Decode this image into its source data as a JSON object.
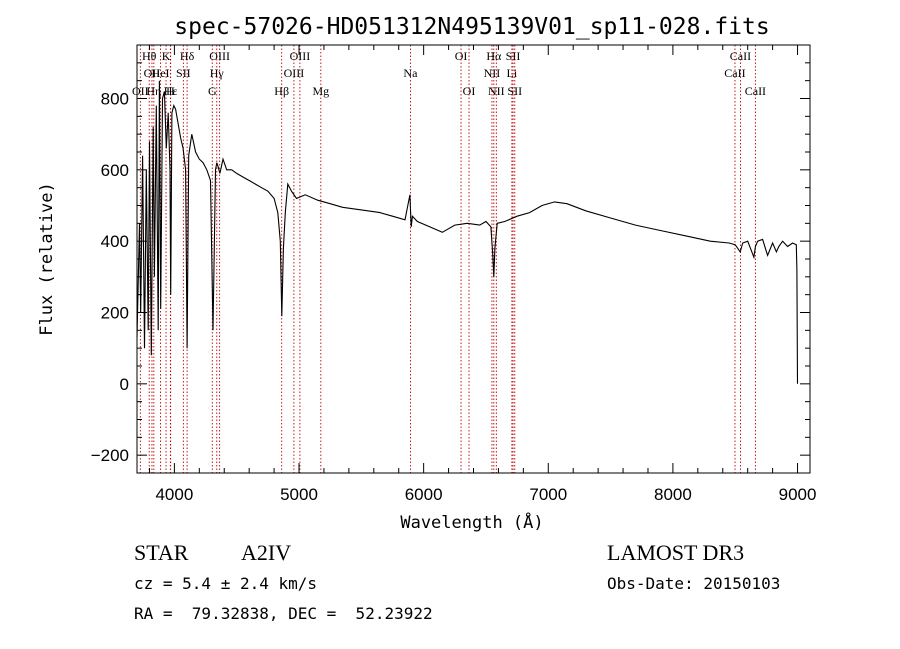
{
  "chart_data": {
    "type": "line",
    "title": "spec-57026-HD051312N495139V01_sp11-028.fits",
    "xlabel": "Wavelength (Å)",
    "ylabel": "Flux (relative)",
    "xlim": [
      3700,
      9100
    ],
    "ylim": [
      -250,
      950
    ],
    "xticks": [
      4000,
      5000,
      6000,
      7000,
      8000,
      9000
    ],
    "yticks": [
      -200,
      0,
      200,
      400,
      600,
      800
    ],
    "grid": false,
    "series": [
      {
        "x": [
          3700,
          3720,
          3730,
          3745,
          3760,
          3775,
          3790,
          3800,
          3815,
          3830,
          3840,
          3855,
          3870,
          3880,
          3890,
          3905,
          3920,
          3935,
          3950,
          3965,
          3970,
          3980,
          3995,
          4010,
          4030,
          4050,
          4070,
          4090,
          4102,
          4115,
          4140,
          4170,
          4200,
          4230,
          4260,
          4290,
          4310,
          4330,
          4340,
          4350,
          4365,
          4390,
          4420,
          4460,
          4500,
          4550,
          4600,
          4650,
          4700,
          4750,
          4800,
          4830,
          4850,
          4862,
          4875,
          4890,
          4910,
          4940,
          4980,
          5050,
          5150,
          5250,
          5350,
          5450,
          5550,
          5650,
          5750,
          5850,
          5890,
          5900,
          5910,
          5950,
          6050,
          6150,
          6250,
          6350,
          6450,
          6500,
          6540,
          6555,
          6563,
          6572,
          6590,
          6650,
          6750,
          6850,
          6950,
          7050,
          7150,
          7300,
          7500,
          7700,
          7900,
          8100,
          8300,
          8450,
          8500,
          8540,
          8560,
          8600,
          8650,
          8662,
          8680,
          8720,
          8760,
          8800,
          8830,
          8850,
          8880,
          8920,
          8960,
          8990,
          8995,
          9000
        ],
        "y": [
          130,
          450,
          200,
          640,
          100,
          600,
          150,
          680,
          80,
          720,
          300,
          780,
          150,
          850,
          210,
          800,
          820,
          660,
          760,
          600,
          250,
          760,
          780,
          770,
          730,
          690,
          660,
          600,
          100,
          640,
          700,
          650,
          630,
          620,
          600,
          570,
          150,
          600,
          620,
          610,
          590,
          630,
          600,
          600,
          590,
          580,
          570,
          560,
          550,
          540,
          520,
          480,
          400,
          190,
          380,
          480,
          560,
          540,
          520,
          530,
          515,
          505,
          495,
          490,
          485,
          480,
          470,
          460,
          530,
          440,
          470,
          455,
          440,
          425,
          445,
          450,
          445,
          455,
          440,
          360,
          300,
          380,
          450,
          455,
          470,
          480,
          500,
          510,
          505,
          485,
          465,
          445,
          430,
          415,
          400,
          395,
          390,
          370,
          395,
          400,
          355,
          385,
          400,
          405,
          360,
          395,
          370,
          385,
          400,
          385,
          395,
          390,
          320,
          0
        ]
      }
    ],
    "lines": [
      {
        "w": 3727,
        "label": "OII",
        "row": 2
      },
      {
        "w": 3798,
        "label": "Hθ",
        "row": 0
      },
      {
        "w": 3820,
        "label": "OII",
        "row": 1
      },
      {
        "w": 3835,
        "label": "Hη",
        "row": 2
      },
      {
        "w": 3889,
        "label": "HeI",
        "row": 1
      },
      {
        "w": 3933,
        "label": "K",
        "row": 0
      },
      {
        "w": 3970,
        "label": "Hε",
        "row": 2
      },
      {
        "w": 3968,
        "label": "H",
        "row": 2
      },
      {
        "w": 4072,
        "label": "SII",
        "row": 1
      },
      {
        "w": 4102,
        "label": "Hδ",
        "row": 0
      },
      {
        "w": 4304,
        "label": "G",
        "row": 2
      },
      {
        "w": 4340,
        "label": "Hγ",
        "row": 1
      },
      {
        "w": 4363,
        "label": "OIII",
        "row": 0
      },
      {
        "w": 4861,
        "label": "Hβ",
        "row": 2
      },
      {
        "w": 4959,
        "label": "OIII",
        "row": 1
      },
      {
        "w": 5007,
        "label": "OIII",
        "row": 0
      },
      {
        "w": 5175,
        "label": "Mg",
        "row": 2
      },
      {
        "w": 5894,
        "label": "Na",
        "row": 1
      },
      {
        "w": 6300,
        "label": "OI",
        "row": 0
      },
      {
        "w": 6364,
        "label": "OI",
        "row": 2
      },
      {
        "w": 6548,
        "label": "NII",
        "row": 1
      },
      {
        "w": 6563,
        "label": "Hα",
        "row": 0
      },
      {
        "w": 6583,
        "label": "NII",
        "row": 2
      },
      {
        "w": 6708,
        "label": "Li",
        "row": 1
      },
      {
        "w": 6717,
        "label": "SII",
        "row": 0
      },
      {
        "w": 6731,
        "label": "SII",
        "row": 2
      },
      {
        "w": 8498,
        "label": "CaII",
        "row": 1
      },
      {
        "w": 8542,
        "label": "CaII",
        "row": 0
      },
      {
        "w": 8662,
        "label": "CaII",
        "row": 2
      }
    ],
    "line_color": "#c00000"
  },
  "info": {
    "object_class": "STAR",
    "subclass": "A2IV",
    "survey": "LAMOST DR3",
    "cz": "cz = 5.4 ± 2.4 km/s",
    "obs_date": "Obs-Date: 20150103",
    "coords": "RA =  79.32838, DEC =  52.23922"
  }
}
